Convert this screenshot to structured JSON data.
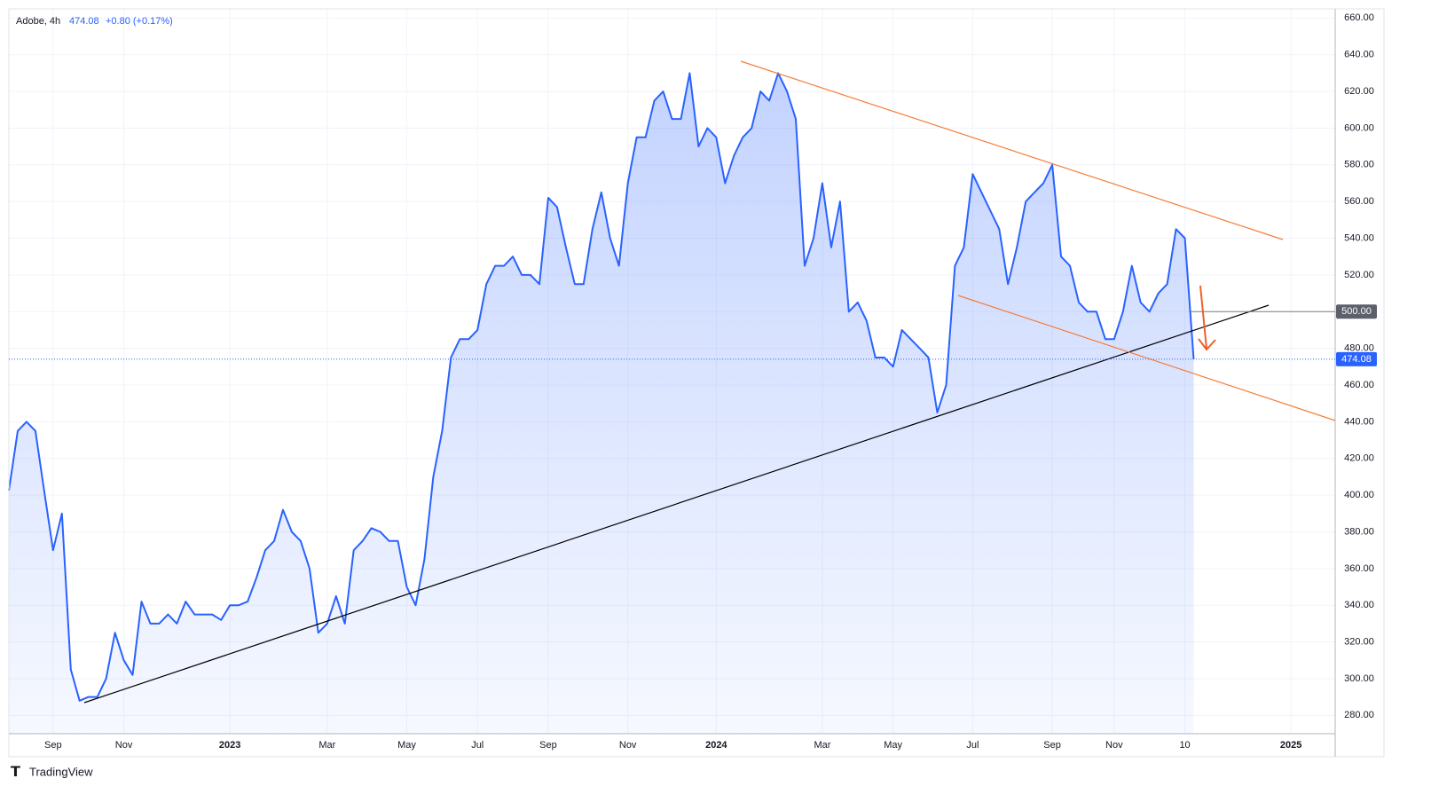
{
  "chart_data": {
    "type": "area",
    "header": {
      "symbol": "Adobe, 4h",
      "last": "474.08",
      "change": "+0.80 (+0.17%)"
    },
    "brand": "TradingView",
    "categories": [
      null,
      null,
      null,
      null,
      null,
      "Sep",
      null,
      null,
      null,
      null,
      null,
      null,
      null,
      "Nov",
      null,
      null,
      null,
      null,
      null,
      null,
      null,
      null,
      null,
      null,
      null,
      "2023",
      null,
      null,
      null,
      null,
      null,
      null,
      null,
      null,
      null,
      null,
      "Mar",
      null,
      null,
      null,
      null,
      null,
      null,
      null,
      null,
      "May",
      null,
      null,
      null,
      null,
      null,
      null,
      null,
      "Jul",
      null,
      null,
      null,
      null,
      null,
      null,
      null,
      "Sep",
      null,
      null,
      null,
      null,
      null,
      null,
      null,
      null,
      "Nov",
      null,
      null,
      null,
      null,
      null,
      null,
      null,
      null,
      null,
      "2024",
      null,
      null,
      null,
      null,
      null,
      null,
      null,
      null,
      null,
      null,
      null,
      "Mar",
      null,
      null,
      null,
      null,
      null,
      null,
      null,
      "May",
      null,
      null,
      null,
      null,
      null,
      null,
      null,
      null,
      "Jul",
      null,
      null,
      null,
      null,
      null,
      null,
      null,
      null,
      "Sep",
      null,
      null,
      null,
      null,
      null,
      null,
      "Nov",
      null,
      null,
      null,
      null,
      null,
      null,
      null,
      "10",
      null,
      null,
      null,
      null,
      null,
      null,
      null,
      null,
      null,
      null,
      null,
      "2025",
      null,
      null,
      null,
      null,
      null
    ],
    "series": [
      {
        "name": "Adobe",
        "color": "#2962ff",
        "values": [
          402.5,
          435,
          440,
          435,
          402,
          370,
          390,
          305,
          288,
          290,
          290,
          300,
          325,
          310,
          302,
          342,
          330,
          330,
          335,
          330,
          342,
          335,
          335,
          335,
          332,
          340,
          340,
          342,
          355,
          370,
          375,
          392,
          380,
          375,
          360,
          325,
          330,
          345,
          330,
          370,
          375,
          382,
          380,
          375,
          375,
          350,
          340,
          365,
          410,
          435,
          475,
          485,
          485,
          490,
          515,
          525,
          525,
          530,
          520,
          520,
          515,
          562,
          557,
          535,
          515,
          515,
          545,
          565,
          540,
          525,
          570,
          595,
          595,
          615,
          620,
          605,
          605,
          630,
          590,
          600,
          595,
          570,
          585,
          595,
          600,
          620,
          615,
          630,
          620,
          605,
          525,
          540,
          570,
          535,
          560,
          500,
          505,
          495,
          475,
          475,
          470,
          490,
          485,
          480,
          475,
          445,
          460,
          525,
          535,
          575,
          565,
          555,
          545,
          515,
          535,
          560,
          565,
          570,
          580,
          530,
          525,
          505,
          500,
          500,
          485,
          485,
          500,
          525,
          505,
          500,
          510,
          515,
          545,
          540,
          474.08,
          null,
          null,
          null,
          null,
          null,
          null,
          null,
          null,
          null,
          null,
          null,
          null,
          null,
          null,
          null,
          null
        ]
      }
    ],
    "ylim": [
      270,
      665
    ],
    "yticks": [
      {
        "value": 280,
        "label": "280.00"
      },
      {
        "value": 300,
        "label": "300.00"
      },
      {
        "value": 320,
        "label": "320.00"
      },
      {
        "value": 340,
        "label": "340.00"
      },
      {
        "value": 360,
        "label": "360.00"
      },
      {
        "value": 380,
        "label": "380.00"
      },
      {
        "value": 400,
        "label": "400.00"
      },
      {
        "value": 420,
        "label": "420.00"
      },
      {
        "value": 440,
        "label": "440.00"
      },
      {
        "value": 460,
        "label": "460.00"
      },
      {
        "value": 480,
        "label": "480.00"
      },
      {
        "value": 500,
        "label": "500.00"
      },
      {
        "value": 520,
        "label": "520.00"
      },
      {
        "value": 540,
        "label": "540.00"
      },
      {
        "value": 560,
        "label": "560.00"
      },
      {
        "value": 580,
        "label": "580.00"
      },
      {
        "value": 600,
        "label": "600.00"
      },
      {
        "value": 620,
        "label": "620.00"
      },
      {
        "value": 640,
        "label": "640.00"
      },
      {
        "value": 660,
        "label": "660.00"
      }
    ],
    "level": {
      "value": 500,
      "label": "500.00"
    },
    "last_price": {
      "value": 474.08,
      "label": "474.08"
    },
    "grid": true
  }
}
